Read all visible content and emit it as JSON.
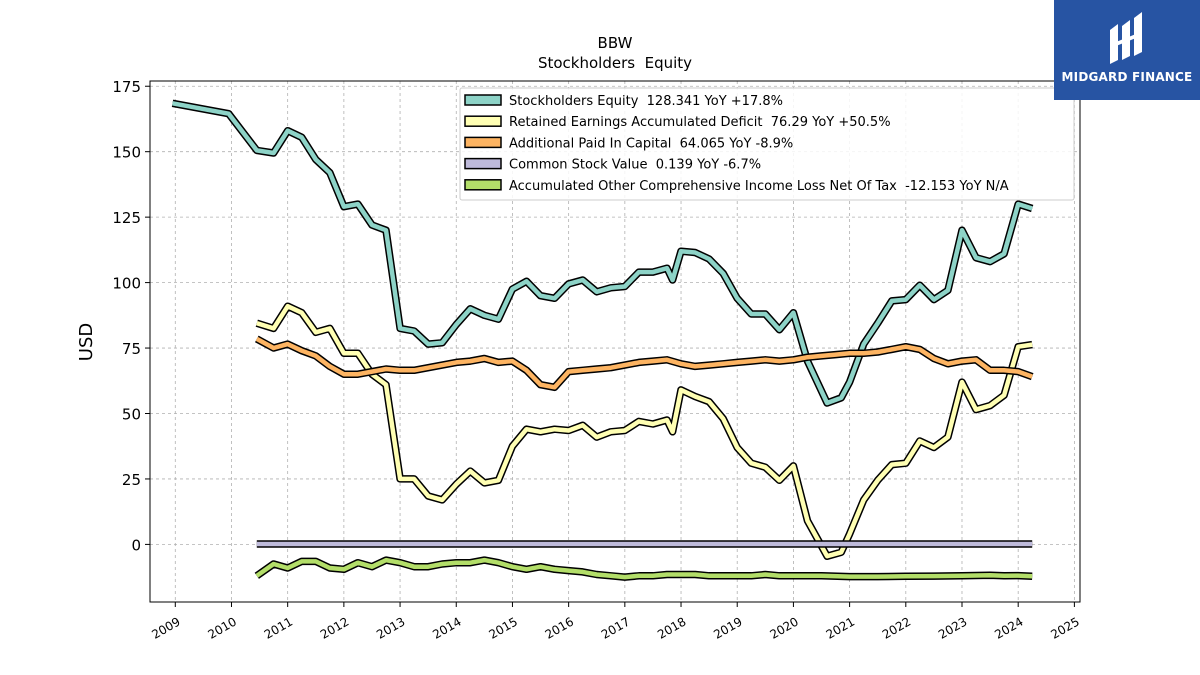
{
  "brand": {
    "name": "MIDGARD FINANCE",
    "bg_color": "#2754a3"
  },
  "chart_data": {
    "type": "line",
    "title": "BBW",
    "subtitle": "Stockholders  Equity",
    "ylabel": "USD",
    "xlabel": "",
    "xlim": [
      2008.55,
      2025.1
    ],
    "ylim": [
      -22,
      177
    ],
    "yticks": [
      0,
      25,
      50,
      75,
      100,
      125,
      150,
      175
    ],
    "xticks": [
      "2009",
      "2010",
      "2011",
      "2012",
      "2013",
      "2014",
      "2015",
      "2016",
      "2017",
      "2018",
      "2019",
      "2020",
      "2021",
      "2022",
      "2023",
      "2024",
      "2025"
    ],
    "grid": true,
    "legend_position": "top-right",
    "series": [
      {
        "name": "Stockholders Equity",
        "legend": "Stockholders Equity  128.341 YoY +17.8%",
        "color": "#8dd3c7",
        "x": [
          2008.95,
          2009.95,
          2010.45,
          2010.75,
          2011.0,
          2011.25,
          2011.5,
          2011.75,
          2012.0,
          2012.25,
          2012.5,
          2012.75,
          2013.0,
          2013.25,
          2013.5,
          2013.75,
          2014.0,
          2014.25,
          2014.5,
          2014.75,
          2015.0,
          2015.25,
          2015.5,
          2015.75,
          2016.0,
          2016.25,
          2016.5,
          2016.75,
          2017.0,
          2017.25,
          2017.5,
          2017.75,
          2017.85,
          2018.0,
          2018.25,
          2018.5,
          2018.75,
          2019.0,
          2019.25,
          2019.5,
          2019.75,
          2020.0,
          2020.25,
          2020.6,
          2020.85,
          2021.0,
          2021.25,
          2021.5,
          2021.75,
          2022.0,
          2022.25,
          2022.5,
          2022.75,
          2023.0,
          2023.25,
          2023.5,
          2023.75,
          2024.0,
          2024.25
        ],
        "values": [
          168.5,
          164.5,
          150.5,
          149.5,
          158.0,
          155.5,
          147.0,
          142.0,
          129.0,
          130.0,
          122.0,
          120.0,
          82.5,
          81.5,
          76.5,
          77.0,
          84.0,
          90.0,
          87.5,
          86.0,
          97.5,
          100.5,
          95.0,
          94.0,
          99.5,
          101.0,
          96.5,
          98.0,
          98.5,
          104.0,
          104.0,
          105.5,
          101.0,
          112.0,
          111.5,
          109.0,
          103.5,
          94.0,
          88.0,
          88.0,
          82.0,
          88.5,
          70.0,
          54.0,
          56.0,
          62.0,
          76.5,
          84.5,
          93.0,
          93.5,
          99.0,
          93.5,
          97.0,
          120.0,
          109.5,
          108.0,
          111.0,
          130.0,
          128.3
        ]
      },
      {
        "name": "Retained Earnings Accumulated Deficit",
        "legend": "Retained Earnings Accumulated Deficit  76.29 YoY +50.5%",
        "color": "#ffffb3",
        "x": [
          2010.45,
          2010.75,
          2011.0,
          2011.25,
          2011.5,
          2011.75,
          2012.0,
          2012.25,
          2012.5,
          2012.75,
          2013.0,
          2013.25,
          2013.5,
          2013.75,
          2014.0,
          2014.25,
          2014.5,
          2014.75,
          2015.0,
          2015.25,
          2015.5,
          2015.75,
          2016.0,
          2016.25,
          2016.5,
          2016.75,
          2017.0,
          2017.25,
          2017.5,
          2017.75,
          2017.85,
          2018.0,
          2018.25,
          2018.5,
          2018.75,
          2019.0,
          2019.25,
          2019.5,
          2019.75,
          2020.0,
          2020.25,
          2020.6,
          2020.85,
          2021.0,
          2021.25,
          2021.5,
          2021.75,
          2022.0,
          2022.25,
          2022.5,
          2022.75,
          2023.0,
          2023.25,
          2023.5,
          2023.75,
          2024.0,
          2024.25
        ],
        "values": [
          84.5,
          82.5,
          91.0,
          88.5,
          81.0,
          82.5,
          73.0,
          73.0,
          65.0,
          61.0,
          25.0,
          25.0,
          18.5,
          17.0,
          23.0,
          28.0,
          23.5,
          24.5,
          37.5,
          44.0,
          43.0,
          44.0,
          43.5,
          45.5,
          41.0,
          43.0,
          43.5,
          47.0,
          46.0,
          47.5,
          43.0,
          59.0,
          56.5,
          54.5,
          48.0,
          37.0,
          31.0,
          29.5,
          24.5,
          30.0,
          9.0,
          -4.5,
          -3.0,
          4.0,
          17.0,
          24.5,
          30.5,
          31.0,
          39.5,
          37.0,
          41.0,
          62.0,
          51.5,
          53.0,
          57.0,
          75.5,
          76.3
        ]
      },
      {
        "name": "Additional Paid In Capital",
        "legend": "Additional Paid In Capital  64.065 YoY -8.9%",
        "color": "#fdb462",
        "x": [
          2010.45,
          2010.75,
          2011.0,
          2011.25,
          2011.5,
          2011.75,
          2012.0,
          2012.25,
          2012.5,
          2012.75,
          2013.0,
          2013.25,
          2013.5,
          2013.75,
          2014.0,
          2014.25,
          2014.5,
          2014.75,
          2015.0,
          2015.25,
          2015.5,
          2015.75,
          2016.0,
          2016.25,
          2016.5,
          2016.75,
          2017.0,
          2017.25,
          2017.5,
          2017.75,
          2018.0,
          2018.25,
          2018.5,
          2018.75,
          2019.0,
          2019.25,
          2019.5,
          2019.75,
          2020.0,
          2020.25,
          2020.5,
          2020.75,
          2021.0,
          2021.25,
          2021.5,
          2021.75,
          2022.0,
          2022.25,
          2022.5,
          2022.75,
          2023.0,
          2023.25,
          2023.5,
          2023.75,
          2024.0,
          2024.25
        ],
        "values": [
          78.5,
          75.0,
          76.5,
          74.0,
          72.0,
          68.0,
          65.0,
          65.0,
          66.0,
          67.0,
          66.5,
          66.5,
          67.5,
          68.5,
          69.5,
          70.0,
          71.0,
          69.5,
          70.0,
          66.5,
          61.0,
          60.0,
          66.0,
          66.5,
          67.0,
          67.5,
          68.5,
          69.5,
          70.0,
          70.5,
          69.0,
          68.0,
          68.5,
          69.0,
          69.5,
          70.0,
          70.5,
          70.0,
          70.5,
          71.5,
          72.0,
          72.5,
          73.0,
          73.0,
          73.5,
          74.5,
          75.5,
          74.5,
          71.0,
          69.0,
          70.0,
          70.5,
          66.5,
          66.5,
          66.0,
          64.1
        ]
      },
      {
        "name": "Common Stock Value",
        "legend": "Common Stock Value  0.139 YoY -6.7%",
        "color": "#bebada",
        "x": [
          2010.45,
          2024.25
        ],
        "values": [
          0.14,
          0.139
        ]
      },
      {
        "name": "Accumulated Other Comprehensive Income Loss Net Of Tax",
        "legend": "Accumulated Other Comprehensive Income Loss Net Of Tax  -12.153 YoY N/A",
        "color": "#b3de69",
        "x": [
          2010.45,
          2010.75,
          2011.0,
          2011.25,
          2011.5,
          2011.75,
          2012.0,
          2012.25,
          2012.5,
          2012.75,
          2013.0,
          2013.25,
          2013.5,
          2013.75,
          2014.0,
          2014.25,
          2014.5,
          2014.75,
          2015.0,
          2015.25,
          2015.5,
          2015.75,
          2016.0,
          2016.25,
          2016.5,
          2016.75,
          2017.0,
          2017.25,
          2017.5,
          2017.75,
          2018.0,
          2018.25,
          2018.5,
          2018.75,
          2019.0,
          2019.25,
          2019.5,
          2019.75,
          2020.0,
          2020.5,
          2021.0,
          2021.5,
          2022.0,
          2022.5,
          2023.0,
          2023.5,
          2023.75,
          2024.0,
          2024.25
        ],
        "values": [
          -12.0,
          -7.5,
          -9.0,
          -6.5,
          -6.5,
          -9.0,
          -9.5,
          -7.0,
          -8.5,
          -6.0,
          -7.0,
          -8.5,
          -8.5,
          -7.5,
          -7.0,
          -7.0,
          -6.0,
          -7.0,
          -8.5,
          -9.5,
          -8.5,
          -9.5,
          -10.0,
          -10.5,
          -11.5,
          -12.0,
          -12.5,
          -12.0,
          -12.0,
          -11.5,
          -11.5,
          -11.5,
          -12.0,
          -12.0,
          -12.0,
          -12.0,
          -11.5,
          -12.0,
          -12.0,
          -12.0,
          -12.3,
          -12.3,
          -12.2,
          -12.1,
          -12.0,
          -11.8,
          -12.0,
          -11.9,
          -12.15
        ]
      }
    ]
  }
}
